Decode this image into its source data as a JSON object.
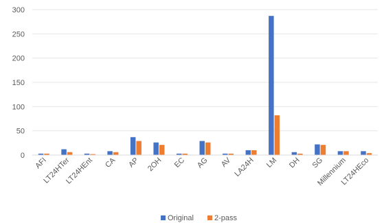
{
  "chart_data": {
    "type": "bar",
    "title": "",
    "xlabel": "",
    "ylabel": "",
    "ylim": [
      0,
      300
    ],
    "yticks": [
      0,
      50,
      100,
      150,
      200,
      250,
      300
    ],
    "grid": true,
    "legend_position": "bottom",
    "categories": [
      "AFI",
      "LT24HTer",
      "LT24HEnt",
      "CA",
      "AP",
      "2OH",
      "EC",
      "AG",
      "AV",
      "LA24H",
      "LM",
      "DH",
      "SG",
      "Millennium",
      "LT24HEco"
    ],
    "series": [
      {
        "name": "Original",
        "color": "#4472c4",
        "values": [
          3,
          12,
          3,
          8,
          37,
          26,
          3,
          29,
          3,
          10,
          287,
          6,
          22,
          8,
          8
        ]
      },
      {
        "name": "2-pass",
        "color": "#ed7d31",
        "values": [
          3,
          6,
          2,
          6,
          29,
          21,
          3,
          26,
          3,
          10,
          82,
          3,
          21,
          8,
          4
        ]
      }
    ]
  }
}
